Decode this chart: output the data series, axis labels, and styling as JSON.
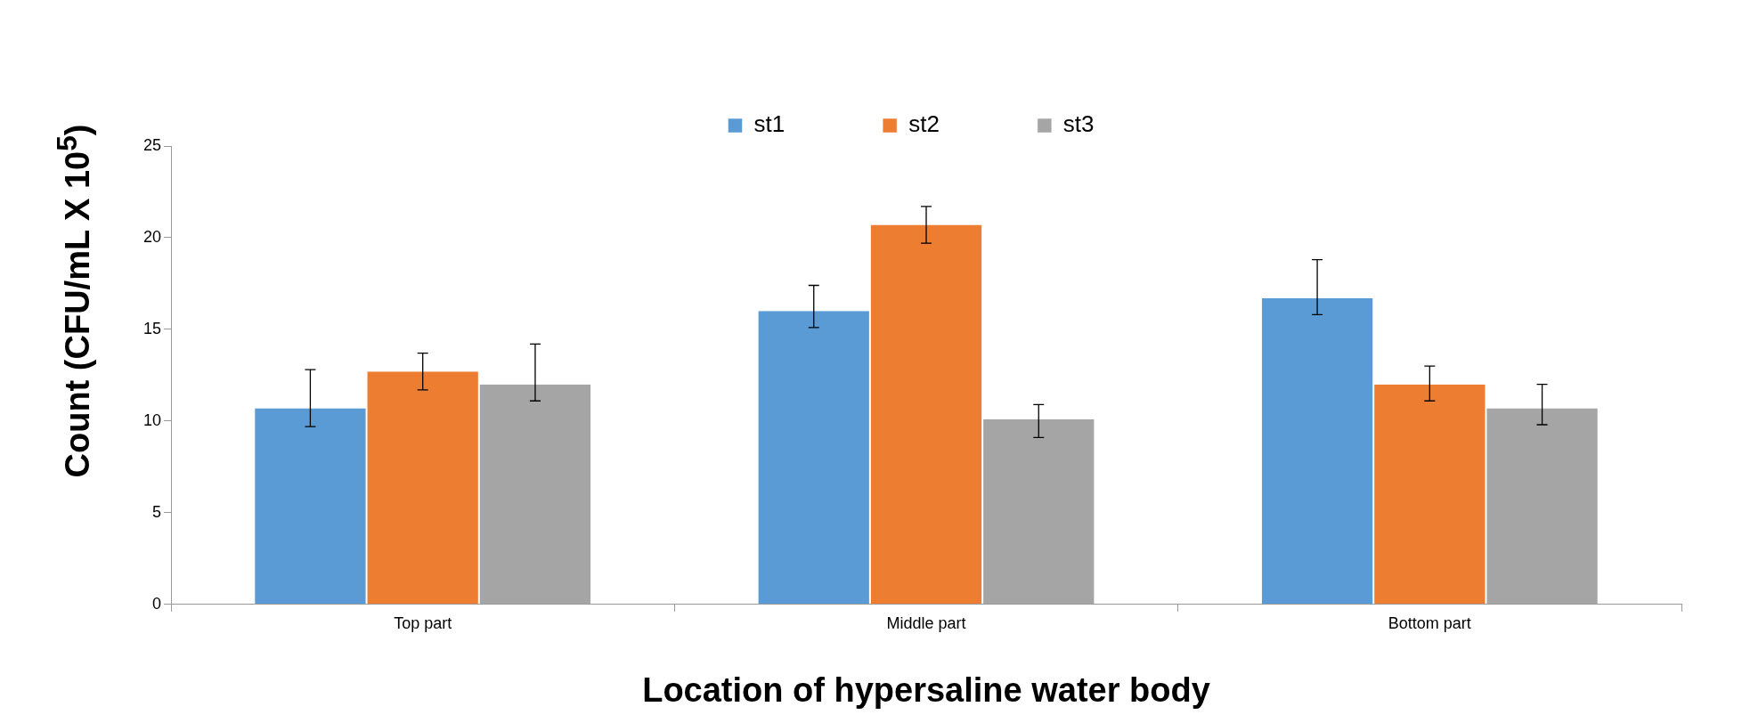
{
  "chart_data": {
    "type": "bar",
    "xlabel": "Location of hypersaline water body",
    "ylabel": "Count (CFU/mL X 10$^{5}$)",
    "categories": [
      "Top part",
      "Middle part",
      "Bottom part"
    ],
    "series": [
      {
        "name": "st1",
        "color": "#5b9bd5",
        "values": [
          10.7,
          16.0,
          16.7
        ],
        "errors": [
          [
            9.7,
            12.8
          ],
          [
            15.1,
            17.4
          ],
          [
            15.8,
            18.8
          ]
        ]
      },
      {
        "name": "st2",
        "color": "#ed7d31",
        "values": [
          12.7,
          20.7,
          12.0
        ],
        "errors": [
          [
            11.7,
            13.7
          ],
          [
            19.7,
            21.7
          ],
          [
            11.1,
            13.0
          ]
        ]
      },
      {
        "name": "st3",
        "color": "#a5a5a5",
        "values": [
          12.0,
          10.1,
          10.7
        ],
        "errors": [
          [
            11.1,
            14.2
          ],
          [
            9.1,
            10.9
          ],
          [
            9.8,
            12.0
          ]
        ]
      }
    ],
    "ylim": [
      0,
      25
    ],
    "yticks": [
      0,
      5,
      10,
      15,
      20,
      25
    ],
    "grid": false,
    "legend": "top"
  }
}
